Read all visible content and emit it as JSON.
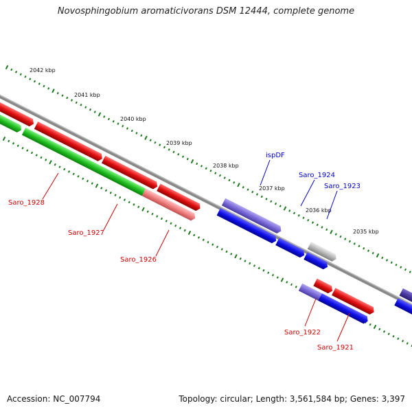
{
  "title": "Novosphingobium aromaticivorans DSM 12444, complete genome",
  "footer": {
    "accession": "Accession: NC_007794",
    "topology": "Topology: circular; Length: 3,561,584 bp; Genes: 3,397"
  },
  "kbp_labels": [
    "2042 kbp",
    "2041 kbp",
    "2040 kbp",
    "2039 kbp",
    "2038 kbp",
    "2037 kbp",
    "2036 kbp",
    "2035 kbp"
  ],
  "genes": [
    {
      "name": "Saro_1928",
      "color": "#cc0000"
    },
    {
      "name": "Saro_1927",
      "color": "#cc0000"
    },
    {
      "name": "Saro_1926",
      "color": "#cc0000"
    },
    {
      "name": "ispDF",
      "color": "#0000cc"
    },
    {
      "name": "Saro_1924",
      "color": "#0000cc"
    },
    {
      "name": "Saro_1923",
      "color": "#0000cc"
    },
    {
      "name": "Saro_1922",
      "color": "#cc0000"
    },
    {
      "name": "Saro_1921",
      "color": "#cc0000"
    }
  ],
  "colors": {
    "forward_red": "#e01010",
    "forward_green": "#22c022",
    "pink": "#f08080",
    "blue": "#1010e8",
    "lavender": "#7a6ad8",
    "gray": "#b0b0b0",
    "dark_purple": "#4a3aa0",
    "backbone": "#808080",
    "ruler": "#1a7a1a"
  }
}
